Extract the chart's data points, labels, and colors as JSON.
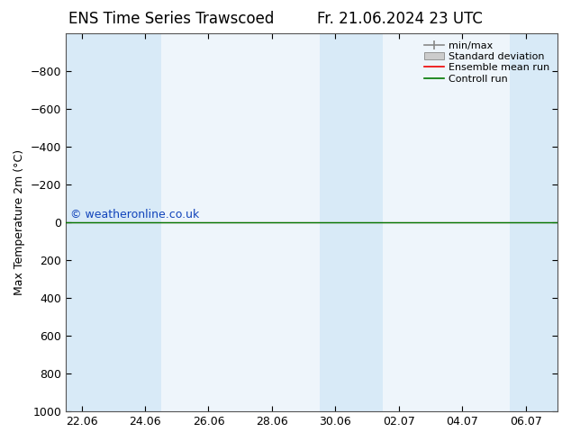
{
  "title_left": "ENS Time Series Trawscoed",
  "title_right": "Fr. 21.06.2024 23 UTC",
  "ylabel": "Max Temperature 2m (°C)",
  "watermark": "© weatheronline.co.uk",
  "ylim_bottom": 1000,
  "ylim_top": -1000,
  "yticks": [
    -800,
    -600,
    -400,
    -200,
    0,
    200,
    400,
    600,
    800,
    1000
  ],
  "x_dates": [
    "22.06",
    "24.06",
    "26.06",
    "28.06",
    "30.06",
    "02.07",
    "04.07",
    "06.07"
  ],
  "x_positions": [
    0,
    2,
    4,
    6,
    8,
    10,
    12,
    14
  ],
  "shaded_bands": [
    {
      "xmin": -0.5,
      "xmax": 2.5
    },
    {
      "xmin": 7.5,
      "xmax": 9.5
    },
    {
      "xmin": 13.5,
      "xmax": 15.0
    }
  ],
  "control_run_y": 0,
  "ensemble_mean_y": 0,
  "line_color_control": "#007700",
  "line_color_ensemble": "#ee0000",
  "shade_color": "#d8eaf7",
  "plot_bg_color": "#eef5fb",
  "background_color": "#ffffff",
  "legend_items": [
    {
      "label": "min/max"
    },
    {
      "label": "Standard deviation"
    },
    {
      "label": "Ensemble mean run",
      "color": "#ee0000"
    },
    {
      "label": "Controll run",
      "color": "#007700"
    }
  ],
  "watermark_color": "#1144bb",
  "title_fontsize": 12,
  "tick_fontsize": 9,
  "ylabel_fontsize": 9,
  "legend_fontsize": 8
}
